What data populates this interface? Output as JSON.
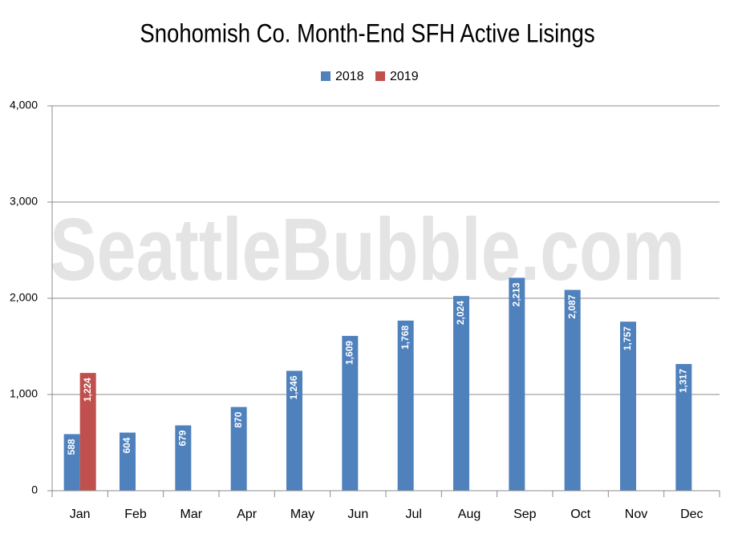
{
  "chart_data": {
    "type": "bar",
    "title": "Snohomish Co. Month-End SFH Active Lisings",
    "watermark": "SeattleBubble.com",
    "categories": [
      "Jan",
      "Feb",
      "Mar",
      "Apr",
      "May",
      "Jun",
      "Jul",
      "Aug",
      "Sep",
      "Oct",
      "Nov",
      "Dec"
    ],
    "series": [
      {
        "name": "2018",
        "color": "#4f81bd",
        "values": [
          588,
          604,
          679,
          870,
          1246,
          1609,
          1768,
          2024,
          2213,
          2087,
          1757,
          1317
        ],
        "value_labels": [
          "588",
          "604",
          "679",
          "870",
          "1,246",
          "1,609",
          "1,768",
          "2,024",
          "2,213",
          "2,087",
          "1,757",
          "1,317"
        ]
      },
      {
        "name": "2019",
        "color": "#c0504d",
        "values": [
          1224,
          null,
          null,
          null,
          null,
          null,
          null,
          null,
          null,
          null,
          null,
          null
        ],
        "value_labels": [
          "1,224",
          null,
          null,
          null,
          null,
          null,
          null,
          null,
          null,
          null,
          null,
          null
        ]
      }
    ],
    "ylim": [
      0,
      4000
    ],
    "yticks": [
      0,
      {
        "value": 1000,
        "label": "1,000"
      },
      {
        "value": 2000,
        "label": "2,000"
      },
      {
        "value": 3000,
        "label": "3,000"
      },
      {
        "value": 4000,
        "label": "4,000"
      }
    ],
    "grid": true,
    "legend": "top"
  }
}
